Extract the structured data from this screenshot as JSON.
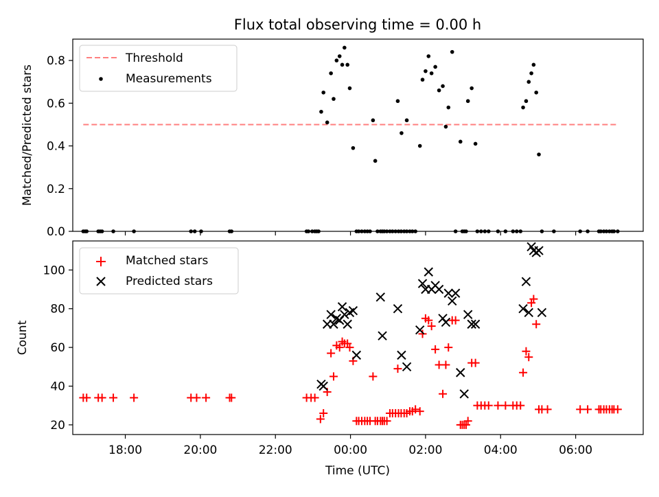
{
  "chart_data": [
    {
      "type": "scatter",
      "title": "Flux total observing time = 0.00 h",
      "xlabel": "",
      "ylabel": "Matched/Predicted stars",
      "ylim": [
        0,
        0.9
      ],
      "yticks": [
        "0.0",
        "0.2",
        "0.4",
        "0.6",
        "0.8"
      ],
      "xlim": [
        -7.4,
        7.8
      ],
      "legend": "top-left",
      "legend_entries": [
        "Threshold",
        "Measurements"
      ],
      "series": [
        {
          "name": "Threshold",
          "kind": "dashed-line",
          "color": "#ff7f7f",
          "x": [
            -7.12,
            7.12
          ],
          "y": [
            0.5,
            0.5
          ]
        },
        {
          "name": "Measurements",
          "kind": "dot",
          "color": "#000000",
          "x": [
            -7.12,
            -7.07,
            -7.03,
            -6.72,
            -6.67,
            -6.62,
            -6.32,
            -5.77,
            -4.25,
            -4.15,
            -3.98,
            -3.22,
            -3.17,
            -1.17,
            -1.12,
            -1.02,
            -0.95,
            -0.9,
            -0.85,
            -0.78,
            -0.72,
            -0.62,
            -0.52,
            -0.45,
            -0.37,
            -0.29,
            -0.22,
            -0.16,
            -0.08,
            -0.02,
            0.07,
            0.16,
            0.22,
            0.3,
            0.38,
            0.45,
            0.52,
            0.6,
            0.66,
            0.72,
            0.8,
            0.85,
            0.9,
            0.97,
            1.05,
            1.12,
            1.2,
            1.28,
            1.35,
            1.43,
            1.5,
            1.58,
            1.65,
            1.73,
            1.26,
            1.36,
            1.5,
            1.85,
            1.92,
            2.0,
            2.08,
            2.16,
            2.26,
            2.36,
            2.46,
            2.54,
            2.61,
            2.71,
            2.8,
            2.93,
            3.03,
            3.13,
            3.23,
            3.33,
            2.98,
            3.08,
            3.38,
            3.48,
            3.58,
            3.68,
            3.93,
            4.13,
            4.33,
            4.43,
            4.53,
            4.6,
            4.68,
            4.75,
            4.82,
            4.88,
            4.95,
            5.02,
            5.1,
            5.42,
            6.12,
            6.32,
            6.62,
            6.67,
            6.75,
            6.82,
            6.9,
            6.97,
            7.02,
            7.12
          ],
          "y": [
            0,
            0,
            0,
            0,
            0,
            0,
            0,
            0,
            0,
            0,
            0,
            0,
            0,
            0,
            0,
            0,
            0,
            0,
            0,
            0.56,
            0.65,
            0.51,
            0.74,
            0.62,
            0.8,
            0.82,
            0.78,
            0.86,
            0.78,
            0.67,
            0.39,
            0,
            0,
            0,
            0,
            0,
            0,
            0.52,
            0.33,
            0,
            0,
            0,
            0,
            0,
            0,
            0,
            0,
            0,
            0,
            0,
            0,
            0,
            0,
            0,
            0.61,
            0.46,
            0.52,
            0.4,
            0.71,
            0.75,
            0.82,
            0.74,
            0.77,
            0.66,
            0.68,
            0.49,
            0.58,
            0.84,
            0,
            0.42,
            0,
            0.61,
            0.67,
            0.41,
            0,
            0,
            0,
            0,
            0,
            0,
            0,
            0,
            0,
            0,
            0,
            0.58,
            0.61,
            0.7,
            0.74,
            0.78,
            0.65,
            0.36,
            0,
            0,
            0,
            0,
            0,
            0,
            0,
            0,
            0,
            0,
            0,
            0
          ]
        }
      ]
    },
    {
      "type": "scatter",
      "title": "",
      "xlabel": "Time (UTC)",
      "ylabel": "Count",
      "ylim": [
        15,
        115
      ],
      "yticks": [
        "20",
        "40",
        "60",
        "80",
        "100"
      ],
      "xlim": [
        -7.4,
        7.8
      ],
      "xtick_values": [
        -6,
        -4,
        -2,
        0,
        2,
        4,
        6
      ],
      "xtick_labels": [
        "18:00",
        "20:00",
        "22:00",
        "00:00",
        "02:00",
        "04:00",
        "06:00"
      ],
      "legend": "top-left",
      "legend_entries": [
        "Matched stars",
        "Predicted stars"
      ],
      "series": [
        {
          "name": "Matched stars",
          "marker": "plus",
          "color": "#ff0000",
          "x": [
            -7.12,
            -7.03,
            -6.72,
            -6.62,
            -6.32,
            -5.77,
            -4.25,
            -4.1,
            -3.85,
            -3.22,
            -3.17,
            -1.17,
            -1.05,
            -0.95,
            -0.8,
            -0.72,
            -0.62,
            -0.52,
            -0.45,
            -0.37,
            -0.29,
            -0.22,
            -0.16,
            -0.08,
            -0.02,
            0.07,
            0.16,
            0.22,
            0.3,
            0.38,
            0.45,
            0.52,
            0.6,
            0.66,
            0.72,
            0.8,
            0.85,
            0.9,
            0.97,
            1.05,
            1.12,
            1.2,
            1.28,
            1.35,
            1.43,
            1.5,
            1.58,
            1.65,
            1.73,
            1.26,
            1.85,
            1.92,
            2.0,
            2.08,
            2.16,
            2.26,
            2.36,
            2.46,
            2.54,
            2.61,
            2.71,
            2.8,
            2.93,
            3.03,
            3.13,
            3.23,
            3.33,
            2.98,
            3.08,
            3.38,
            3.48,
            3.58,
            3.68,
            3.93,
            4.13,
            4.33,
            4.43,
            4.53,
            4.6,
            4.68,
            4.75,
            4.82,
            4.88,
            4.95,
            5.02,
            5.1,
            5.25,
            6.12,
            6.32,
            6.62,
            6.67,
            6.75,
            6.82,
            6.9,
            6.97,
            7.02,
            7.12
          ],
          "y": [
            34,
            34,
            34,
            34,
            34,
            34,
            34,
            34,
            34,
            34,
            34,
            34,
            34,
            34,
            23,
            26,
            37,
            57,
            45,
            61,
            60,
            63,
            62,
            62,
            60,
            53,
            22,
            22,
            22,
            22,
            22,
            22,
            45,
            22,
            22,
            22,
            22,
            22,
            22,
            26,
            26,
            26,
            26,
            26,
            26,
            26,
            27,
            27,
            28,
            49,
            27,
            67,
            75,
            74,
            71,
            59,
            51,
            36,
            51,
            60,
            74,
            74,
            20,
            20,
            22,
            52,
            52,
            20,
            20,
            30,
            30,
            30,
            30,
            30,
            30,
            30,
            30,
            30,
            47,
            58,
            55,
            83,
            85,
            72,
            28,
            28,
            28,
            28,
            28,
            28,
            28,
            28,
            28,
            28,
            28,
            28,
            28
          ]
        },
        {
          "name": "Predicted stars",
          "marker": "cross",
          "color": "#000000",
          "x": [
            -0.78,
            -0.72,
            -0.62,
            -0.52,
            -0.45,
            -0.37,
            -0.29,
            -0.22,
            -0.16,
            -0.08,
            -0.02,
            0.07,
            0.16,
            0.8,
            0.85,
            1.26,
            1.36,
            1.5,
            1.85,
            1.92,
            2.0,
            2.08,
            2.16,
            2.26,
            2.36,
            2.46,
            2.54,
            2.61,
            2.71,
            2.8,
            2.93,
            3.03,
            3.13,
            3.23,
            3.33,
            4.6,
            4.68,
            4.75,
            4.82,
            4.88,
            4.95,
            5.02,
            5.1
          ],
          "y": [
            41,
            40,
            72,
            77,
            72,
            75,
            74,
            81,
            77,
            72,
            78,
            79,
            56,
            86,
            66,
            80,
            56,
            50,
            69,
            93,
            90,
            99,
            90,
            92,
            90,
            75,
            73,
            88,
            84,
            88,
            47,
            36,
            77,
            72,
            72,
            80,
            94,
            78,
            112,
            110,
            109,
            110,
            78
          ]
        }
      ]
    }
  ]
}
